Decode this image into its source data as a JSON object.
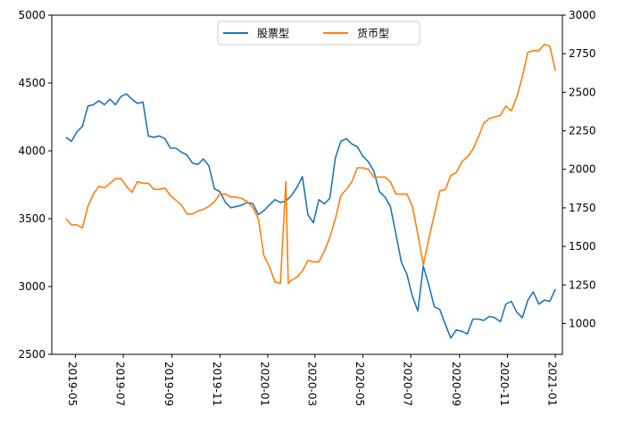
{
  "chart_data": {
    "type": "line",
    "title": "",
    "xlabel": "",
    "ylabel_left": "",
    "ylabel_right": "",
    "x_ticks": [
      "2019-05",
      "2019-07",
      "2019-09",
      "2019-11",
      "2020-01",
      "2020-03",
      "2020-05",
      "2020-07",
      "2020-09",
      "2020-11",
      "2021-01"
    ],
    "x_range": [
      "2019-04-01",
      "2021-01-10"
    ],
    "y_left_ticks": [
      2500,
      3000,
      3500,
      4000,
      4500,
      5000
    ],
    "y_left_range": [
      2500,
      5000
    ],
    "y_right_ticks": [
      1000,
      1250,
      1500,
      1750,
      2000,
      2250,
      2500,
      2750,
      3000
    ],
    "y_right_range": [
      800,
      3000
    ],
    "legend_position": "top-center",
    "grid": false,
    "series": [
      {
        "name": "股票型",
        "axis": "left",
        "color": "#1f77b4",
        "points": [
          [
            "2019-04-19",
            4100
          ],
          [
            "2019-04-26",
            4070
          ],
          [
            "2019-05-03",
            4140
          ],
          [
            "2019-05-10",
            4180
          ],
          [
            "2019-05-17",
            4330
          ],
          [
            "2019-05-24",
            4340
          ],
          [
            "2019-05-31",
            4370
          ],
          [
            "2019-06-07",
            4340
          ],
          [
            "2019-06-14",
            4380
          ],
          [
            "2019-06-21",
            4340
          ],
          [
            "2019-06-28",
            4400
          ],
          [
            "2019-07-05",
            4420
          ],
          [
            "2019-07-12",
            4380
          ],
          [
            "2019-07-19",
            4350
          ],
          [
            "2019-07-26",
            4360
          ],
          [
            "2019-08-02",
            4110
          ],
          [
            "2019-08-09",
            4100
          ],
          [
            "2019-08-16",
            4110
          ],
          [
            "2019-08-23",
            4090
          ],
          [
            "2019-08-30",
            4020
          ],
          [
            "2019-09-06",
            4020
          ],
          [
            "2019-09-13",
            3990
          ],
          [
            "2019-09-20",
            3970
          ],
          [
            "2019-09-27",
            3910
          ],
          [
            "2019-10-04",
            3900
          ],
          [
            "2019-10-11",
            3940
          ],
          [
            "2019-10-18",
            3890
          ],
          [
            "2019-10-25",
            3720
          ],
          [
            "2019-11-01",
            3700
          ],
          [
            "2019-11-08",
            3620
          ],
          [
            "2019-11-15",
            3580
          ],
          [
            "2019-11-22",
            3590
          ],
          [
            "2019-11-29",
            3600
          ],
          [
            "2019-12-06",
            3620
          ],
          [
            "2019-12-13",
            3610
          ],
          [
            "2019-12-20",
            3530
          ],
          [
            "2019-12-27",
            3560
          ],
          [
            "2020-01-03",
            3600
          ],
          [
            "2020-01-10",
            3640
          ],
          [
            "2020-01-17",
            3620
          ],
          [
            "2020-01-24",
            3630
          ],
          [
            "2020-01-31",
            3670
          ],
          [
            "2020-02-07",
            3730
          ],
          [
            "2020-02-14",
            3810
          ],
          [
            "2020-02-21",
            3530
          ],
          [
            "2020-02-28",
            3470
          ],
          [
            "2020-03-06",
            3640
          ],
          [
            "2020-03-13",
            3610
          ],
          [
            "2020-03-20",
            3650
          ],
          [
            "2020-03-27",
            3950
          ],
          [
            "2020-04-03",
            4070
          ],
          [
            "2020-04-10",
            4090
          ],
          [
            "2020-04-17",
            4050
          ],
          [
            "2020-04-24",
            4030
          ],
          [
            "2020-05-01",
            3960
          ],
          [
            "2020-05-08",
            3920
          ],
          [
            "2020-05-15",
            3850
          ],
          [
            "2020-05-22",
            3700
          ],
          [
            "2020-05-29",
            3660
          ],
          [
            "2020-06-05",
            3590
          ],
          [
            "2020-06-12",
            3390
          ],
          [
            "2020-06-19",
            3180
          ],
          [
            "2020-06-26",
            3090
          ],
          [
            "2020-07-03",
            2930
          ],
          [
            "2020-07-10",
            2820
          ],
          [
            "2020-07-17",
            3150
          ],
          [
            "2020-07-24",
            3010
          ],
          [
            "2020-07-31",
            2850
          ],
          [
            "2020-08-07",
            2830
          ],
          [
            "2020-08-14",
            2720
          ],
          [
            "2020-08-21",
            2620
          ],
          [
            "2020-08-28",
            2680
          ],
          [
            "2020-09-04",
            2670
          ],
          [
            "2020-09-11",
            2650
          ],
          [
            "2020-09-18",
            2760
          ],
          [
            "2020-09-25",
            2760
          ],
          [
            "2020-10-02",
            2750
          ],
          [
            "2020-10-09",
            2780
          ],
          [
            "2020-10-16",
            2770
          ],
          [
            "2020-10-23",
            2740
          ],
          [
            "2020-10-30",
            2870
          ],
          [
            "2020-11-06",
            2890
          ],
          [
            "2020-11-13",
            2810
          ],
          [
            "2020-11-20",
            2770
          ],
          [
            "2020-11-27",
            2900
          ],
          [
            "2020-12-04",
            2960
          ],
          [
            "2020-12-11",
            2870
          ],
          [
            "2020-12-18",
            2900
          ],
          [
            "2020-12-25",
            2890
          ],
          [
            "2021-01-01",
            2980
          ]
        ]
      },
      {
        "name": "货币型",
        "axis": "right",
        "color": "#ff7f0e",
        "points": [
          [
            "2019-04-19",
            1680
          ],
          [
            "2019-04-26",
            1640
          ],
          [
            "2019-05-03",
            1640
          ],
          [
            "2019-05-10",
            1620
          ],
          [
            "2019-05-17",
            1760
          ],
          [
            "2019-05-24",
            1840
          ],
          [
            "2019-05-31",
            1890
          ],
          [
            "2019-06-07",
            1880
          ],
          [
            "2019-06-14",
            1910
          ],
          [
            "2019-06-21",
            1940
          ],
          [
            "2019-06-28",
            1940
          ],
          [
            "2019-07-05",
            1890
          ],
          [
            "2019-07-12",
            1850
          ],
          [
            "2019-07-19",
            1920
          ],
          [
            "2019-07-26",
            1910
          ],
          [
            "2019-08-02",
            1910
          ],
          [
            "2019-08-09",
            1870
          ],
          [
            "2019-08-16",
            1870
          ],
          [
            "2019-08-23",
            1880
          ],
          [
            "2019-08-30",
            1830
          ],
          [
            "2019-09-06",
            1800
          ],
          [
            "2019-09-13",
            1770
          ],
          [
            "2019-09-20",
            1710
          ],
          [
            "2019-09-27",
            1710
          ],
          [
            "2019-10-04",
            1730
          ],
          [
            "2019-10-11",
            1740
          ],
          [
            "2019-10-18",
            1760
          ],
          [
            "2019-10-25",
            1790
          ],
          [
            "2019-11-01",
            1840
          ],
          [
            "2019-11-08",
            1840
          ],
          [
            "2019-11-15",
            1820
          ],
          [
            "2019-11-22",
            1820
          ],
          [
            "2019-11-29",
            1810
          ],
          [
            "2019-12-06",
            1790
          ],
          [
            "2019-12-13",
            1750
          ],
          [
            "2019-12-20",
            1680
          ],
          [
            "2019-12-27",
            1440
          ],
          [
            "2020-01-03",
            1370
          ],
          [
            "2020-01-10",
            1270
          ],
          [
            "2020-01-17",
            1260
          ],
          [
            "2020-01-24",
            1920
          ],
          [
            "2020-01-27",
            1260
          ],
          [
            "2020-01-31",
            1280
          ],
          [
            "2020-02-07",
            1300
          ],
          [
            "2020-02-14",
            1340
          ],
          [
            "2020-02-21",
            1410
          ],
          [
            "2020-02-28",
            1400
          ],
          [
            "2020-03-06",
            1400
          ],
          [
            "2020-03-13",
            1470
          ],
          [
            "2020-03-20",
            1560
          ],
          [
            "2020-03-27",
            1680
          ],
          [
            "2020-04-03",
            1830
          ],
          [
            "2020-04-10",
            1870
          ],
          [
            "2020-04-17",
            1920
          ],
          [
            "2020-04-24",
            2010
          ],
          [
            "2020-05-01",
            2010
          ],
          [
            "2020-05-08",
            2000
          ],
          [
            "2020-05-15",
            1950
          ],
          [
            "2020-05-22",
            1950
          ],
          [
            "2020-05-29",
            1950
          ],
          [
            "2020-06-05",
            1920
          ],
          [
            "2020-06-12",
            1840
          ],
          [
            "2020-06-19",
            1840
          ],
          [
            "2020-06-26",
            1840
          ],
          [
            "2020-07-03",
            1760
          ],
          [
            "2020-07-10",
            1580
          ],
          [
            "2020-07-17",
            1380
          ],
          [
            "2020-07-24",
            1550
          ],
          [
            "2020-07-31",
            1710
          ],
          [
            "2020-08-07",
            1860
          ],
          [
            "2020-08-14",
            1870
          ],
          [
            "2020-08-21",
            1960
          ],
          [
            "2020-08-28",
            1980
          ],
          [
            "2020-09-04",
            2050
          ],
          [
            "2020-09-11",
            2080
          ],
          [
            "2020-09-18",
            2130
          ],
          [
            "2020-09-25",
            2210
          ],
          [
            "2020-10-02",
            2300
          ],
          [
            "2020-10-09",
            2330
          ],
          [
            "2020-10-16",
            2340
          ],
          [
            "2020-10-23",
            2350
          ],
          [
            "2020-10-30",
            2410
          ],
          [
            "2020-11-06",
            2380
          ],
          [
            "2020-11-13",
            2470
          ],
          [
            "2020-11-20",
            2600
          ],
          [
            "2020-11-27",
            2760
          ],
          [
            "2020-12-04",
            2770
          ],
          [
            "2020-12-11",
            2770
          ],
          [
            "2020-12-18",
            2810
          ],
          [
            "2020-12-25",
            2800
          ],
          [
            "2021-01-01",
            2640
          ]
        ]
      }
    ]
  }
}
